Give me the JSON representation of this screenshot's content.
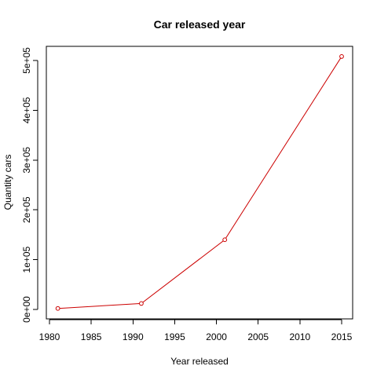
{
  "chart_data": {
    "type": "line",
    "title": "Car released year",
    "xlabel": "Year released",
    "ylabel": "Quantity cars",
    "x": [
      1981,
      1991,
      2001,
      2015
    ],
    "y": [
      2000,
      12000,
      140000,
      508000
    ],
    "xlim": [
      1980,
      2015
    ],
    "ylim": [
      0,
      500000
    ],
    "xticks": [
      1980,
      1985,
      1990,
      1995,
      2000,
      2005,
      2010,
      2015
    ],
    "xtick_labels": [
      "1980",
      "1985",
      "1990",
      "1995",
      "2000",
      "2005",
      "2010",
      "2015"
    ],
    "yticks": [
      0,
      100000,
      200000,
      300000,
      400000,
      500000
    ],
    "ytick_labels": [
      "0e+00",
      "1e+05",
      "2e+05",
      "3e+05",
      "4e+05",
      "5e+05"
    ],
    "line_color": "#cc0000",
    "marker": "open-circle",
    "grid": false,
    "legend": "none"
  }
}
